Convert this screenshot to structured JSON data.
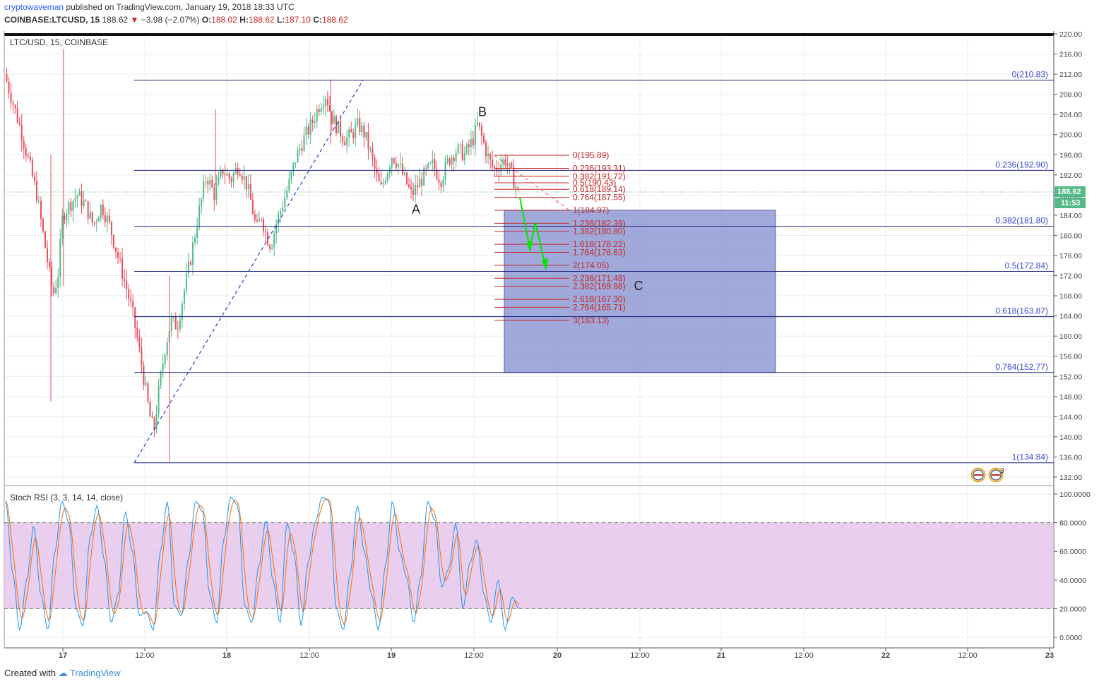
{
  "header": {
    "author": "cryptowaveman",
    "published": "published on TradingView.com, January 19, 2018 18:33 UTC",
    "symbol": "COINBASE:LTCUSD, 15",
    "last": "188.62",
    "change": "−3.98 (−2.07%)",
    "o_label": "O:",
    "o": "188.02",
    "h_label": "H:",
    "h": "188.62",
    "l_label": "L:",
    "l": "187.10",
    "c_label": "C:",
    "c": "188.62"
  },
  "legend_main": "LTC/USD, 15, COINBASE",
  "legend_osc": "Stoch RSI (3, 3, 14, 14, close)",
  "price_badge": "188.62",
  "time_badge": "11:53",
  "flags_count": "3",
  "footer": {
    "created": "Created with",
    "brand": "TradingView"
  },
  "colors": {
    "up": "#53b987",
    "down": "#eb4d5c",
    "fib_blue": "#1a237e",
    "fib_red": "#c62828",
    "box": "#7986cb",
    "stoch_k": "#2196f3",
    "stoch_d": "#ff6d00",
    "band": "#e1bee7",
    "arrow": "#00e600"
  },
  "chart_data": [
    {
      "type": "candlestick",
      "title": "LTC/USD, 15, COINBASE",
      "yaxis": {
        "ticks": [
          "220.00",
          "216.00",
          "212.00",
          "208.00",
          "204.00",
          "200.00",
          "196.00",
          "192.00",
          "188.00",
          "184.00",
          "180.00",
          "176.00",
          "172.00",
          "168.00",
          "164.00",
          "160.00",
          "156.00",
          "152.00",
          "148.00",
          "144.00",
          "140.00",
          "136.00",
          "132.00"
        ],
        "ylim": [
          130,
          221
        ]
      },
      "xaxis": {
        "ticks": [
          "17",
          "12:00",
          "18",
          "12:00",
          "19",
          "12:00",
          "20",
          "12:00",
          "21",
          "12:00",
          "22",
          "12:00",
          "23"
        ]
      },
      "price_path": [
        [
          0,
          212
        ],
        [
          1,
          201
        ],
        [
          2,
          188
        ],
        [
          2.6,
          176
        ],
        [
          3,
          168
        ],
        [
          3.3,
          172
        ],
        [
          3.6,
          184
        ],
        [
          4,
          186
        ],
        [
          4.5,
          188
        ],
        [
          5,
          186
        ],
        [
          5.5,
          182
        ],
        [
          6,
          186
        ],
        [
          6.5,
          182
        ],
        [
          7,
          176
        ],
        [
          7.5,
          170
        ],
        [
          7.9,
          165
        ],
        [
          8.3,
          158
        ],
        [
          8.7,
          150
        ],
        [
          9,
          144
        ],
        [
          9.25,
          141
        ],
        [
          9.5,
          148
        ],
        [
          9.9,
          157
        ],
        [
          10.3,
          163
        ],
        [
          10.7,
          162
        ],
        [
          11,
          167
        ],
        [
          11.5,
          175
        ],
        [
          12,
          184
        ],
        [
          12.5,
          192
        ],
        [
          13,
          188
        ],
        [
          13.5,
          193
        ],
        [
          14,
          191
        ],
        [
          14.5,
          194
        ],
        [
          15,
          190
        ],
        [
          15.3,
          186
        ],
        [
          15.6,
          181
        ],
        [
          15.9,
          184
        ],
        [
          16.2,
          180
        ],
        [
          16.5,
          178
        ],
        [
          16.8,
          182
        ],
        [
          17.2,
          186
        ],
        [
          17.6,
          190
        ],
        [
          18,
          195
        ],
        [
          18.5,
          199
        ],
        [
          19,
          202
        ],
        [
          19.5,
          206
        ],
        [
          19.9,
          208
        ],
        [
          20.3,
          203
        ],
        [
          20.7,
          201
        ],
        [
          21.1,
          199
        ],
        [
          21.5,
          200
        ],
        [
          21.9,
          202
        ],
        [
          22.3,
          200
        ],
        [
          22.7,
          196
        ],
        [
          23,
          192
        ],
        [
          23.3,
          189
        ],
        [
          23.7,
          193
        ],
        [
          24,
          196
        ],
        [
          24.4,
          194
        ],
        [
          24.8,
          191
        ],
        [
          25.2,
          188
        ],
        [
          25.6,
          190
        ],
        [
          26,
          192
        ],
        [
          26.5,
          194
        ],
        [
          27,
          191
        ],
        [
          27.5,
          195
        ],
        [
          28,
          197
        ],
        [
          28.5,
          196
        ],
        [
          29,
          199
        ],
        [
          29.3,
          202
        ],
        [
          29.6,
          199
        ],
        [
          30,
          195
        ],
        [
          30.3,
          193
        ],
        [
          30.6,
          194
        ],
        [
          31,
          195
        ],
        [
          31.4,
          192
        ],
        [
          31.8,
          188.62
        ]
      ],
      "fib_retracement": [
        {
          "label": "0(210.83)",
          "value": 210.83
        },
        {
          "label": "0.236(192.90)",
          "value": 192.9
        },
        {
          "label": "0.382(181.80)",
          "value": 181.8
        },
        {
          "label": "0.5(172.84)",
          "value": 172.84
        },
        {
          "label": "0.618(163.87)",
          "value": 163.87
        },
        {
          "label": "0.764(152.77)",
          "value": 152.77
        },
        {
          "label": "1(134.84)",
          "value": 134.84
        }
      ],
      "fib_extension": [
        {
          "label": "0(195.89)",
          "value": 195.89
        },
        {
          "label": "0.236(193.31)",
          "value": 193.31
        },
        {
          "label": "0.382(191.72)",
          "value": 191.72
        },
        {
          "label": "0.5(190.43)",
          "value": 190.43
        },
        {
          "label": "0.618(189.14)",
          "value": 189.14
        },
        {
          "label": "0.764(187.55)",
          "value": 187.55
        },
        {
          "label": "1(184.97)",
          "value": 184.97
        },
        {
          "label": "1.236(182.39)",
          "value": 182.39
        },
        {
          "label": "1.382(180.80)",
          "value": 180.8
        },
        {
          "label": "1.618(178.22)",
          "value": 178.22
        },
        {
          "label": "1.764(176.63)",
          "value": 176.63
        },
        {
          "label": "2(174.05)",
          "value": 174.05
        },
        {
          "label": "2.236(171.48)",
          "value": 171.48
        },
        {
          "label": "2.382(169.88)",
          "value": 169.88
        },
        {
          "label": "2.618(167.30)",
          "value": 167.3
        },
        {
          "label": "2.764(165.71)",
          "value": 165.71
        },
        {
          "label": "3(163.13)",
          "value": 163.13
        }
      ],
      "target_box": {
        "top": 185,
        "bottom": 152.77
      },
      "wave_labels": [
        "A",
        "B",
        "C"
      ],
      "last_price": 188.62
    },
    {
      "type": "line",
      "title": "Stoch RSI (3, 3, 14, 14, close)",
      "yaxis": {
        "ticks": [
          "100.0000",
          "80.0000",
          "60.0000",
          "40.0000",
          "20.0000",
          "0.0000"
        ],
        "ylim": [
          -1,
          101
        ]
      },
      "band": [
        20,
        80
      ],
      "series": [
        {
          "values": [
            95,
            45,
            5,
            40,
            78,
            30,
            5,
            60,
            95,
            80,
            20,
            8,
            70,
            92,
            55,
            10,
            30,
            88,
            60,
            15,
            18,
            5,
            60,
            95,
            22,
            15,
            55,
            95,
            88,
            30,
            10,
            68,
            98,
            92,
            22,
            10,
            50,
            82,
            40,
            10,
            80,
            58,
            8,
            52,
            80,
            98,
            95,
            20,
            5,
            45,
            92,
            60,
            30,
            5,
            50,
            95,
            60,
            42,
            10,
            42,
            95,
            82,
            35,
            48,
            80,
            20,
            52,
            68,
            30,
            10,
            40,
            5,
            28,
            20
          ]
        }
      ]
    }
  ]
}
